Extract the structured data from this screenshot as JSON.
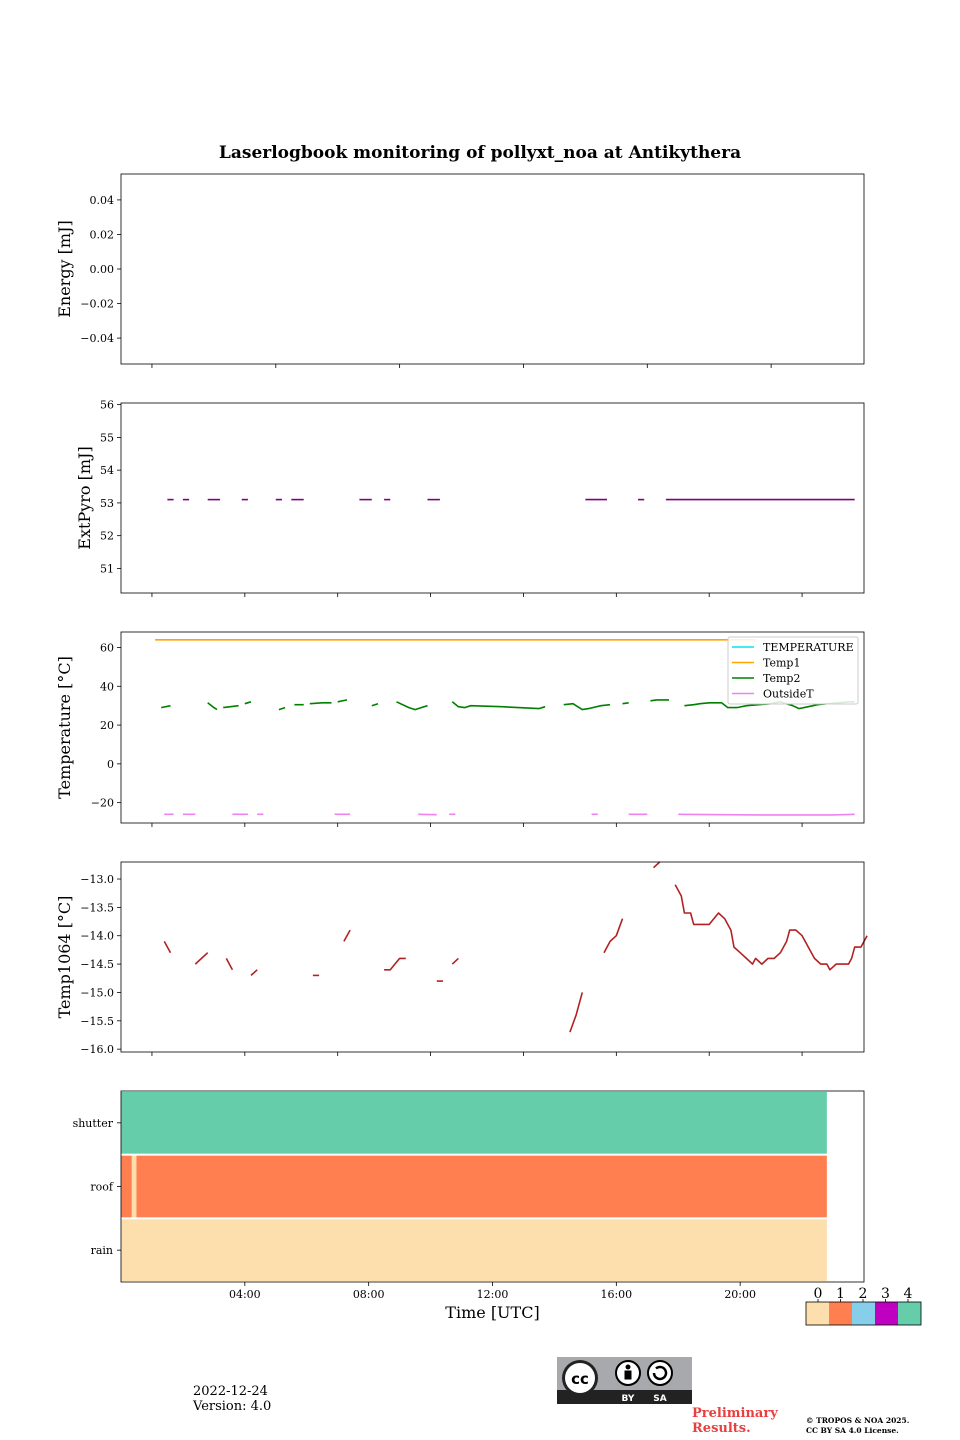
{
  "page": {
    "title": "Laserlogbook monitoring of pollyxt_noa at Antikythera",
    "date": "2022-12-24",
    "version": "Version: 4.0",
    "preliminary": [
      "Preliminary",
      "Results."
    ],
    "copyright": [
      "© TROPOS & NOA 2025.",
      "CC BY SA 4.0 License."
    ],
    "license_badge": {
      "by": "BY",
      "sa": "SA"
    }
  },
  "chart_data": [
    {
      "type": "line",
      "id": "energy",
      "ylabel": "Energy [mJ]",
      "ylim": [
        -0.055,
        0.055
      ],
      "yticks": [
        0.04,
        0.02,
        0.0,
        -0.02,
        -0.04
      ],
      "ytick_labels": [
        "0.04",
        "0.02",
        "0.00",
        "−0.02",
        "−0.04"
      ],
      "xlim": [
        0,
        24
      ],
      "xticks": [
        1,
        5,
        9,
        13,
        17,
        21
      ],
      "series": []
    },
    {
      "type": "line",
      "id": "extpyro",
      "ylabel": "ExtPyro [mJ]",
      "ylim": [
        50.25,
        56.05
      ],
      "yticks": [
        51,
        52,
        53,
        54,
        55,
        56
      ],
      "ytick_labels": [
        "51",
        "52",
        "53",
        "54",
        "55",
        "56"
      ],
      "xlim": [
        0,
        24
      ],
      "xticks": [
        1,
        4,
        7,
        10,
        13,
        16,
        19,
        22
      ],
      "series": [
        {
          "color": "#800080",
          "segments": [
            [
              [
                1.5,
                53.1
              ],
              [
                1.7,
                53.1
              ]
            ],
            [
              [
                2.0,
                53.1
              ],
              [
                2.2,
                53.1
              ]
            ],
            [
              [
                2.8,
                53.1
              ],
              [
                3.2,
                53.1
              ]
            ],
            [
              [
                3.9,
                53.1
              ],
              [
                4.1,
                53.1
              ]
            ],
            [
              [
                5.0,
                53.1
              ],
              [
                5.2,
                53.1
              ]
            ],
            [
              [
                5.5,
                53.1
              ],
              [
                5.9,
                53.1
              ]
            ],
            [
              [
                7.7,
                53.1
              ],
              [
                8.1,
                53.1
              ]
            ],
            [
              [
                8.5,
                53.1
              ],
              [
                8.7,
                53.1
              ]
            ],
            [
              [
                9.9,
                53.1
              ],
              [
                10.3,
                53.1
              ]
            ],
            [
              [
                15.0,
                53.1
              ],
              [
                15.7,
                53.1
              ]
            ],
            [
              [
                16.7,
                53.1
              ],
              [
                16.9,
                53.1
              ]
            ],
            [
              [
                17.6,
                53.1
              ],
              [
                23.7,
                53.1
              ]
            ]
          ]
        }
      ]
    },
    {
      "type": "line",
      "id": "temperature",
      "ylabel": "Temperature [°C]",
      "ylim": [
        -30.5,
        68
      ],
      "yticks": [
        60,
        40,
        20,
        0,
        -20
      ],
      "ytick_labels": [
        "60",
        "40",
        "20",
        "0",
        "−20"
      ],
      "xlim": [
        0,
        24
      ],
      "xticks": [
        1,
        4,
        7,
        10,
        13,
        16,
        19,
        22
      ],
      "legend": {
        "placement": "upper right",
        "entries": [
          {
            "name": "TEMPERATURE",
            "color": "#00e5ee"
          },
          {
            "name": "Temp1",
            "color": "#ffa500"
          },
          {
            "name": "Temp2",
            "color": "#008000"
          },
          {
            "name": "OutsideT",
            "color": "#ee82ee"
          }
        ]
      },
      "series": [
        {
          "name": "Temp1",
          "color": "#ffa500",
          "segments": [
            [
              [
                1.1,
                64
              ],
              [
                20.5,
                64
              ]
            ]
          ]
        },
        {
          "name": "Temp2",
          "color": "#008000",
          "segments": [
            [
              [
                1.3,
                29
              ],
              [
                1.6,
                30
              ]
            ],
            [
              [
                2.8,
                31.5
              ],
              [
                3.0,
                29
              ],
              [
                3.1,
                28
              ]
            ],
            [
              [
                3.3,
                29
              ],
              [
                3.8,
                30
              ]
            ],
            [
              [
                4.0,
                31
              ],
              [
                4.2,
                32
              ]
            ],
            [
              [
                5.1,
                28
              ],
              [
                5.3,
                29
              ]
            ],
            [
              [
                5.6,
                30.5
              ],
              [
                5.9,
                30.5
              ]
            ],
            [
              [
                6.1,
                31
              ],
              [
                6.5,
                31.5
              ],
              [
                6.8,
                31.5
              ]
            ],
            [
              [
                7.0,
                32
              ],
              [
                7.3,
                33
              ]
            ],
            [
              [
                8.1,
                30
              ],
              [
                8.3,
                31
              ]
            ],
            [
              [
                8.9,
                32
              ],
              [
                9.3,
                29
              ],
              [
                9.5,
                28
              ],
              [
                9.7,
                29
              ],
              [
                9.9,
                30
              ]
            ],
            [
              [
                10.7,
                32
              ],
              [
                10.9,
                29.5
              ],
              [
                11.1,
                29
              ],
              [
                11.3,
                30
              ],
              [
                12.3,
                29.5
              ],
              [
                13.5,
                28.5
              ],
              [
                13.7,
                29.5
              ]
            ],
            [
              [
                14.3,
                30.5
              ],
              [
                14.6,
                31
              ],
              [
                14.7,
                30
              ],
              [
                14.9,
                28
              ],
              [
                15.1,
                28.5
              ],
              [
                15.5,
                30
              ],
              [
                15.8,
                30.5
              ]
            ],
            [
              [
                16.2,
                31
              ],
              [
                16.4,
                31.5
              ]
            ],
            [
              [
                17.1,
                32.5
              ],
              [
                17.3,
                33
              ],
              [
                17.7,
                33
              ]
            ],
            [
              [
                18.2,
                30
              ],
              [
                18.5,
                30.5
              ],
              [
                18.7,
                31
              ],
              [
                19.0,
                31.5
              ],
              [
                19.4,
                31.5
              ],
              [
                19.6,
                29
              ],
              [
                19.9,
                29
              ],
              [
                20.2,
                30
              ],
              [
                20.6,
                30.5
              ],
              [
                21.0,
                31
              ],
              [
                21.3,
                32
              ],
              [
                21.7,
                30
              ],
              [
                21.9,
                28.5
              ],
              [
                22.2,
                29.5
              ],
              [
                22.5,
                30.5
              ],
              [
                22.8,
                31
              ],
              [
                23.2,
                31.5
              ],
              [
                23.5,
                32
              ],
              [
                23.7,
                32
              ]
            ]
          ]
        },
        {
          "name": "OutsideT",
          "color": "#ee82ee",
          "segments": [
            [
              [
                1.4,
                -26
              ],
              [
                1.7,
                -26
              ]
            ],
            [
              [
                2.0,
                -26
              ],
              [
                2.4,
                -26
              ]
            ],
            [
              [
                3.6,
                -26
              ],
              [
                4.1,
                -26
              ]
            ],
            [
              [
                4.4,
                -26
              ],
              [
                4.6,
                -26
              ]
            ],
            [
              [
                6.9,
                -26
              ],
              [
                7.4,
                -26
              ]
            ],
            [
              [
                9.6,
                -26
              ],
              [
                10.2,
                -26.2
              ]
            ],
            [
              [
                10.6,
                -26
              ],
              [
                10.8,
                -26
              ]
            ],
            [
              [
                15.2,
                -26
              ],
              [
                15.4,
                -26
              ]
            ],
            [
              [
                16.4,
                -26
              ],
              [
                17.0,
                -26
              ]
            ],
            [
              [
                18.0,
                -26
              ],
              [
                20.5,
                -26.3
              ],
              [
                23.0,
                -26.3
              ],
              [
                23.7,
                -26
              ]
            ]
          ]
        }
      ]
    },
    {
      "type": "line",
      "id": "temp1064",
      "ylabel": "Temp1064 [°C]",
      "ylim": [
        -16.05,
        -12.7
      ],
      "yticks": [
        -13.0,
        -13.5,
        -14.0,
        -14.5,
        -15.0,
        -15.5,
        -16.0
      ],
      "ytick_labels": [
        "−13.0",
        "−13.5",
        "−14.0",
        "−14.5",
        "−15.0",
        "−15.5",
        "−16.0"
      ],
      "xlim": [
        0,
        24
      ],
      "xticks": [
        1,
        4,
        7,
        10,
        13,
        16,
        19,
        22
      ],
      "series": [
        {
          "color": "#b22222",
          "segments": [
            [
              [
                1.4,
                -14.1
              ],
              [
                1.6,
                -14.3
              ]
            ],
            [
              [
                2.4,
                -14.5
              ],
              [
                2.6,
                -14.4
              ],
              [
                2.8,
                -14.3
              ]
            ],
            [
              [
                3.4,
                -14.4
              ],
              [
                3.6,
                -14.6
              ]
            ],
            [
              [
                4.2,
                -14.7
              ],
              [
                4.4,
                -14.6
              ]
            ],
            [
              [
                6.2,
                -14.7
              ],
              [
                6.4,
                -14.7
              ]
            ],
            [
              [
                7.2,
                -14.1
              ],
              [
                7.4,
                -13.9
              ]
            ],
            [
              [
                8.5,
                -14.6
              ],
              [
                8.7,
                -14.6
              ],
              [
                9.0,
                -14.4
              ],
              [
                9.2,
                -14.4
              ]
            ],
            [
              [
                10.2,
                -14.8
              ],
              [
                10.4,
                -14.8
              ]
            ],
            [
              [
                10.7,
                -14.5
              ],
              [
                10.9,
                -14.4
              ]
            ],
            [
              [
                14.5,
                -15.7
              ],
              [
                14.7,
                -15.4
              ],
              [
                14.9,
                -15.0
              ]
            ],
            [
              [
                15.6,
                -14.3
              ],
              [
                15.8,
                -14.1
              ],
              [
                16.0,
                -14.0
              ],
              [
                16.2,
                -13.7
              ]
            ],
            [
              [
                17.2,
                -12.8
              ],
              [
                17.4,
                -12.7
              ]
            ],
            [
              [
                17.9,
                -13.1
              ],
              [
                18.1,
                -13.3
              ],
              [
                18.2,
                -13.6
              ],
              [
                18.4,
                -13.6
              ],
              [
                18.5,
                -13.8
              ],
              [
                19.0,
                -13.8
              ],
              [
                19.3,
                -13.6
              ],
              [
                19.5,
                -13.7
              ],
              [
                19.7,
                -13.9
              ],
              [
                19.8,
                -14.2
              ],
              [
                20.0,
                -14.3
              ],
              [
                20.2,
                -14.4
              ],
              [
                20.4,
                -14.5
              ],
              [
                20.5,
                -14.4
              ],
              [
                20.7,
                -14.5
              ],
              [
                20.9,
                -14.4
              ],
              [
                21.1,
                -14.4
              ],
              [
                21.3,
                -14.3
              ],
              [
                21.5,
                -14.1
              ],
              [
                21.6,
                -13.9
              ],
              [
                21.8,
                -13.9
              ],
              [
                22.0,
                -14.0
              ],
              [
                22.2,
                -14.2
              ],
              [
                22.4,
                -14.4
              ],
              [
                22.6,
                -14.5
              ],
              [
                22.8,
                -14.5
              ],
              [
                22.9,
                -14.6
              ],
              [
                23.1,
                -14.5
              ],
              [
                23.5,
                -14.5
              ],
              [
                23.6,
                -14.4
              ],
              [
                23.7,
                -14.2
              ],
              [
                23.9,
                -14.2
              ],
              [
                24.1,
                -14.0
              ]
            ]
          ]
        }
      ]
    },
    {
      "type": "heatmap",
      "id": "status",
      "xlabel": "Time [UTC]",
      "rows": [
        "shutter",
        "roof",
        "rain"
      ],
      "xlim": [
        0,
        24
      ],
      "xticks": [
        4,
        8,
        12,
        16,
        20
      ],
      "xtick_labels": [
        "04:00",
        "08:00",
        "12:00",
        "16:00",
        "20:00"
      ],
      "data_end": 22.8,
      "cells": {
        "shutter": [
          [
            0,
            22.8,
            4
          ]
        ],
        "roof": [
          [
            0,
            0.35,
            1
          ],
          [
            0.35,
            0.5,
            0
          ],
          [
            0.5,
            22.8,
            1
          ]
        ],
        "rain": [
          [
            0,
            22.8,
            0
          ]
        ]
      },
      "colorbar": {
        "ticks": [
          "0",
          "1",
          "2",
          "3",
          "4"
        ],
        "colors": [
          "#fddead",
          "#ff7f50",
          "#87ceeb",
          "#c000c0",
          "#66cdaa"
        ]
      }
    }
  ]
}
